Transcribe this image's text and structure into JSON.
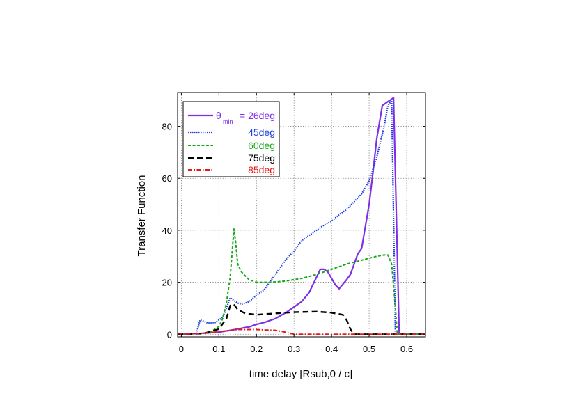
{
  "chart_data": {
    "type": "line",
    "xlabel": "time delay [Rsub,0 / c]",
    "ylabel": "Transfer Function",
    "xlim": [
      -0.01,
      0.65
    ],
    "ylim": [
      -1,
      93
    ],
    "xticks": [
      0,
      0.1,
      0.2,
      0.3,
      0.4,
      0.5,
      0.6
    ],
    "xtick_labels": [
      "0",
      "0.1",
      "0.2",
      "0.3",
      "0.4",
      "0.5",
      "0.6"
    ],
    "yticks": [
      0,
      20,
      40,
      60,
      80
    ],
    "ytick_labels": [
      "0",
      "20",
      "40",
      "60",
      "80"
    ],
    "grid": true,
    "legend_position": "top-left",
    "legend_symbol": "θ",
    "legend_subscript": "min",
    "legend_first_suffix": " = 26deg",
    "series": [
      {
        "name": "26deg",
        "color": "#7f2fe6",
        "style": "solid",
        "points": [
          [
            -0.01,
            0
          ],
          [
            0.05,
            0.3
          ],
          [
            0.1,
            0.8
          ],
          [
            0.13,
            1.5
          ],
          [
            0.16,
            2.3
          ],
          [
            0.17,
            2.6
          ],
          [
            0.18,
            2.8
          ],
          [
            0.2,
            3.8
          ],
          [
            0.22,
            4.5
          ],
          [
            0.25,
            6
          ],
          [
            0.28,
            8.5
          ],
          [
            0.3,
            10.5
          ],
          [
            0.32,
            12.5
          ],
          [
            0.34,
            16
          ],
          [
            0.36,
            22
          ],
          [
            0.37,
            25
          ],
          [
            0.38,
            25
          ],
          [
            0.39,
            24
          ],
          [
            0.41,
            19
          ],
          [
            0.42,
            17.5
          ],
          [
            0.44,
            21
          ],
          [
            0.45,
            23
          ],
          [
            0.47,
            31
          ],
          [
            0.48,
            33
          ],
          [
            0.5,
            50
          ],
          [
            0.51,
            62
          ],
          [
            0.52,
            75
          ],
          [
            0.535,
            88
          ],
          [
            0.55,
            89.5
          ],
          [
            0.565,
            91
          ],
          [
            0.58,
            0
          ],
          [
            0.65,
            0
          ]
        ]
      },
      {
        "name": "45deg",
        "color": "#1f3fe0",
        "style": "dotted",
        "points": [
          [
            -0.01,
            0
          ],
          [
            0.04,
            0.3
          ],
          [
            0.05,
            5.5
          ],
          [
            0.06,
            5
          ],
          [
            0.07,
            4.3
          ],
          [
            0.09,
            4.5
          ],
          [
            0.11,
            6.5
          ],
          [
            0.12,
            10
          ],
          [
            0.13,
            14
          ],
          [
            0.14,
            13
          ],
          [
            0.15,
            12
          ],
          [
            0.16,
            11.5
          ],
          [
            0.18,
            12.5
          ],
          [
            0.2,
            15
          ],
          [
            0.22,
            17
          ],
          [
            0.24,
            21
          ],
          [
            0.26,
            25
          ],
          [
            0.28,
            29
          ],
          [
            0.3,
            32
          ],
          [
            0.32,
            36
          ],
          [
            0.34,
            38
          ],
          [
            0.36,
            40
          ],
          [
            0.38,
            42
          ],
          [
            0.4,
            43.5
          ],
          [
            0.42,
            46
          ],
          [
            0.44,
            48
          ],
          [
            0.46,
            51
          ],
          [
            0.48,
            54
          ],
          [
            0.5,
            59
          ],
          [
            0.52,
            68
          ],
          [
            0.54,
            80
          ],
          [
            0.55,
            88
          ],
          [
            0.56,
            90
          ],
          [
            0.57,
            0
          ],
          [
            0.65,
            0
          ]
        ]
      },
      {
        "name": "60deg",
        "color": "#1aa81a",
        "style": "dashed",
        "points": [
          [
            -0.01,
            0
          ],
          [
            0.06,
            0.3
          ],
          [
            0.08,
            1
          ],
          [
            0.1,
            3
          ],
          [
            0.11,
            6
          ],
          [
            0.12,
            12
          ],
          [
            0.13,
            22
          ],
          [
            0.14,
            40.5
          ],
          [
            0.145,
            35
          ],
          [
            0.15,
            27
          ],
          [
            0.16,
            24
          ],
          [
            0.18,
            21
          ],
          [
            0.2,
            20
          ],
          [
            0.24,
            20
          ],
          [
            0.28,
            20.5
          ],
          [
            0.32,
            21.5
          ],
          [
            0.36,
            23
          ],
          [
            0.4,
            25
          ],
          [
            0.44,
            27
          ],
          [
            0.48,
            28.5
          ],
          [
            0.52,
            30
          ],
          [
            0.54,
            30.5
          ],
          [
            0.55,
            30.5
          ],
          [
            0.56,
            27
          ],
          [
            0.57,
            10
          ],
          [
            0.575,
            0
          ],
          [
            0.65,
            0
          ]
        ]
      },
      {
        "name": "75deg",
        "color": "#000000",
        "style": "longdash",
        "points": [
          [
            -0.01,
            0
          ],
          [
            0.06,
            0.3
          ],
          [
            0.1,
            2
          ],
          [
            0.12,
            6
          ],
          [
            0.13,
            11
          ],
          [
            0.14,
            11.5
          ],
          [
            0.15,
            9.5
          ],
          [
            0.17,
            8
          ],
          [
            0.2,
            7.5
          ],
          [
            0.25,
            8
          ],
          [
            0.3,
            8.5
          ],
          [
            0.36,
            8.7
          ],
          [
            0.4,
            8.3
          ],
          [
            0.43,
            7.5
          ],
          [
            0.44,
            5.5
          ],
          [
            0.45,
            2
          ],
          [
            0.46,
            0
          ],
          [
            0.65,
            0
          ]
        ]
      },
      {
        "name": "85deg",
        "color": "#e81818",
        "style": "dashdot",
        "points": [
          [
            -0.01,
            0
          ],
          [
            0.05,
            0.3
          ],
          [
            0.1,
            1
          ],
          [
            0.13,
            1.5
          ],
          [
            0.15,
            1.8
          ],
          [
            0.2,
            1.8
          ],
          [
            0.25,
            1.5
          ],
          [
            0.27,
            1
          ],
          [
            0.29,
            0.4
          ],
          [
            0.3,
            0
          ],
          [
            0.65,
            0
          ]
        ]
      }
    ]
  }
}
